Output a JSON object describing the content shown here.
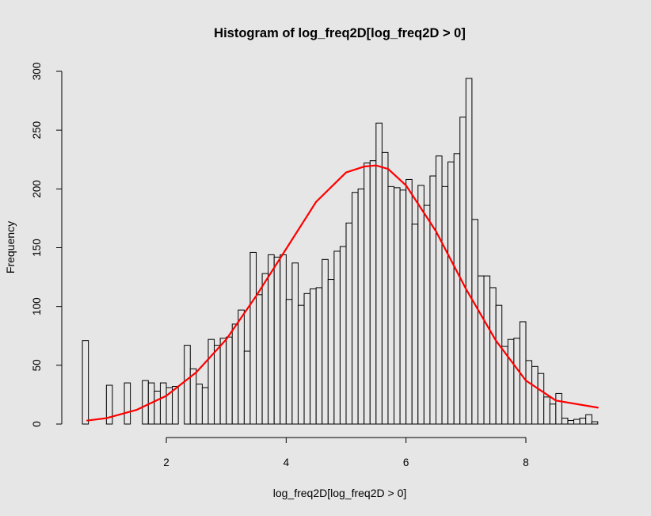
{
  "chart_data": {
    "type": "bar",
    "title": "Histogram of log_freq2D[log_freq2D > 0]",
    "xlabel": "log_freq2D[log_freq2D > 0]",
    "ylabel": "Frequency",
    "xlim": [
      0.6,
      9.2
    ],
    "ylim": [
      0,
      300
    ],
    "xticks": [
      2,
      4,
      6,
      8
    ],
    "yticks": [
      0,
      50,
      100,
      150,
      200,
      250,
      300
    ],
    "bin_width": 0.1,
    "bins_start": 0.6,
    "values": [
      71,
      0,
      0,
      0,
      33,
      0,
      0,
      35,
      0,
      0,
      37,
      35,
      28,
      35,
      31,
      32,
      0,
      67,
      47,
      34,
      31,
      72,
      67,
      73,
      74,
      85,
      97,
      62,
      146,
      110,
      128,
      144,
      142,
      144,
      106,
      137,
      101,
      111,
      115,
      116,
      140,
      123,
      147,
      151,
      171,
      197,
      200,
      222,
      224,
      256,
      231,
      202,
      201,
      199,
      208,
      170,
      203,
      186,
      211,
      228,
      202,
      223,
      230,
      261,
      294,
      174,
      126,
      126,
      116,
      101,
      66,
      72,
      73,
      87,
      54,
      49,
      43,
      23,
      17,
      26,
      5,
      3,
      4,
      5,
      8,
      2
    ],
    "colors": {
      "bar_fill": "#e6e6e6",
      "bar_stroke": "#000000",
      "curve": "#ff0000",
      "background": "#e6e6e6"
    },
    "overlay_curve": {
      "type": "line",
      "x": [
        0.68,
        1.0,
        1.5,
        2.0,
        2.5,
        3.0,
        3.5,
        4.0,
        4.5,
        5.0,
        5.3,
        5.5,
        5.7,
        6.0,
        6.5,
        7.0,
        7.5,
        8.0,
        8.5,
        9.2
      ],
      "y": [
        3,
        5,
        12,
        24,
        44,
        72,
        109,
        149,
        189,
        214,
        219,
        220,
        217,
        203,
        164,
        115,
        71,
        37,
        20,
        14
      ]
    }
  }
}
